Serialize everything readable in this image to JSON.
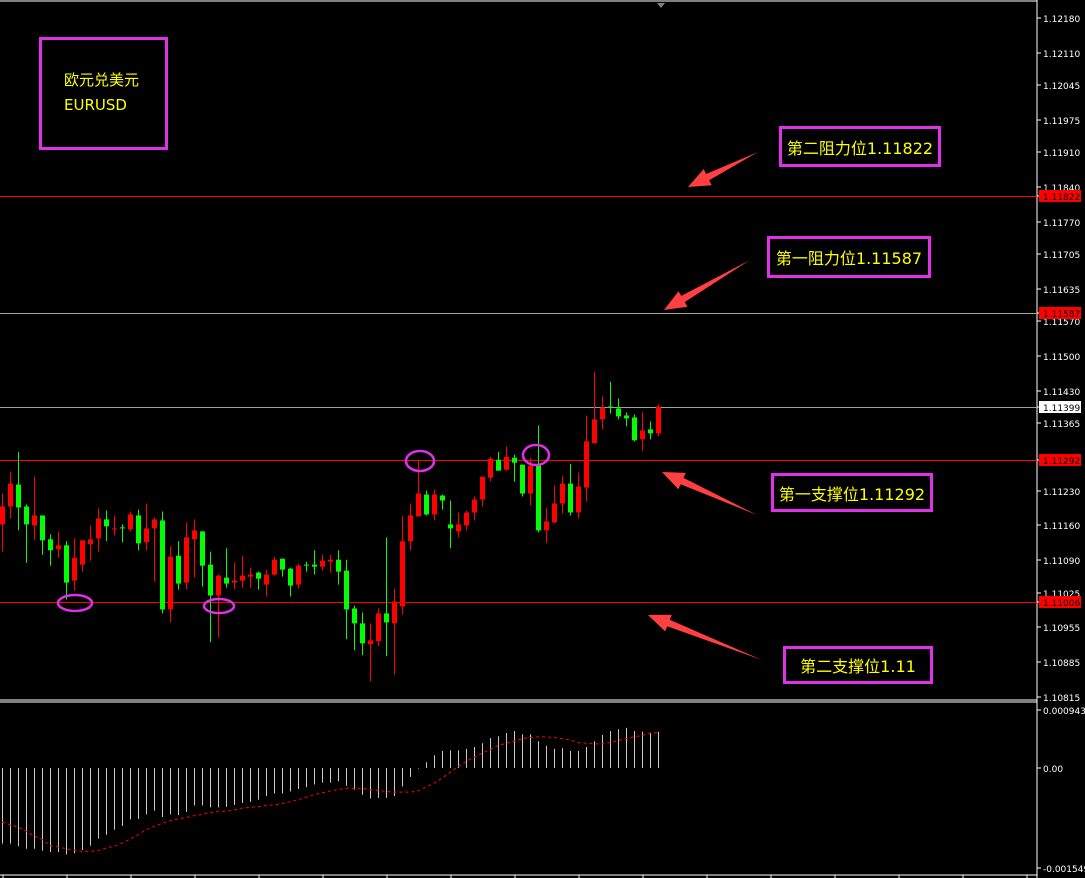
{
  "symbol_box": {
    "name_cn": "欧元兑美元",
    "name": "EURUSD"
  },
  "annotations": {
    "resistance2": "第二阻力位1.11822",
    "resistance1": "第一阻力位1.11587",
    "support1": "第一支撑位1.11292",
    "support2": "第二支撑位1.11"
  },
  "colors": {
    "background": "#000000",
    "bull_candle": "#ff0000",
    "bear_candle": "#00ff00",
    "level_line": "#ff0000",
    "price_line": "#a0a0a0",
    "histogram": "#c8c8c8",
    "signal": "#ff0000",
    "annotation_border": "#e030e8",
    "annotation_text": "#ffff00",
    "arrow": "#ff4040"
  },
  "chart_data": [
    {
      "type": "candlestick",
      "symbol": "EURUSD",
      "ylim": [
        1.1079,
        1.1221
      ],
      "grid": false,
      "y_ticks": [
        "1.12180",
        "1.12110",
        "1.12045",
        "1.11975",
        "1.11910",
        "1.11840",
        "1.11770",
        "1.11705",
        "1.11635",
        "1.11570",
        "1.11500",
        "1.11430",
        "1.11365",
        "1.11230",
        "1.11160",
        "1.11090",
        "1.11025",
        "1.10955",
        "1.10885",
        "1.10815"
      ],
      "level_labels": [
        {
          "value": "1.11822",
          "style": "level"
        },
        {
          "value": "1.11587",
          "style": "level"
        },
        {
          "value": "1.11399",
          "style": "current"
        },
        {
          "value": "1.11292",
          "style": "level"
        },
        {
          "value": "1.11006",
          "style": "level"
        }
      ],
      "horizontal_lines": [
        {
          "value": 1.11822,
          "color": "#ff0000"
        },
        {
          "value": 1.11587,
          "color": "#a0a0a0"
        },
        {
          "value": 1.11399,
          "color": "#a0a0a0"
        },
        {
          "value": 1.11292,
          "color": "#ff0000"
        },
        {
          "value": 1.11006,
          "color": "#ff0000"
        }
      ],
      "ohlc": [
        [
          1.11162,
          1.11224,
          1.11107,
          1.11198
        ],
        [
          1.11198,
          1.11268,
          1.11174,
          1.11244
        ],
        [
          1.11242,
          1.11308,
          1.1115,
          1.11196
        ],
        [
          1.11198,
          1.11202,
          1.11085,
          1.11162
        ],
        [
          1.1116,
          1.11258,
          1.1113,
          1.1118
        ],
        [
          1.1118,
          1.1118,
          1.11101,
          1.1113
        ],
        [
          1.11132,
          1.11142,
          1.11079,
          1.1111
        ],
        [
          1.11112,
          1.11148,
          1.11095,
          1.1112
        ],
        [
          1.1112,
          1.11128,
          1.11011,
          1.11045
        ],
        [
          1.11049,
          1.11134,
          1.11029,
          1.11095
        ],
        [
          1.11081,
          1.1113,
          1.11067,
          1.1113
        ],
        [
          1.11122,
          1.1116,
          1.11089,
          1.11132
        ],
        [
          1.11134,
          1.11194,
          1.11107,
          1.11174
        ],
        [
          1.11172,
          1.1119,
          1.11128,
          1.11158
        ],
        [
          1.11152,
          1.1118,
          1.1114,
          1.11154
        ],
        [
          1.11156,
          1.11162,
          1.11126,
          1.11154
        ],
        [
          1.11152,
          1.11188,
          1.11148,
          1.11182
        ],
        [
          1.1118,
          1.11192,
          1.1111,
          1.11124
        ],
        [
          1.11126,
          1.11204,
          1.1111,
          1.11154
        ],
        [
          1.11154,
          1.11176,
          1.11047,
          1.11172
        ],
        [
          1.1117,
          1.11188,
          1.10983,
          1.10991
        ],
        [
          1.10991,
          1.11118,
          1.10965,
          1.11097
        ],
        [
          1.11099,
          1.11128,
          1.11031,
          1.11043
        ],
        [
          1.11045,
          1.11166,
          1.11031,
          1.11136
        ],
        [
          1.11132,
          1.11172,
          1.11055,
          1.1115
        ],
        [
          1.11148,
          1.11148,
          1.11037,
          1.11079
        ],
        [
          1.11081,
          1.11107,
          1.10925,
          1.11019
        ],
        [
          1.11019,
          1.11061,
          1.10935,
          1.11059
        ],
        [
          1.11055,
          1.11114,
          1.11035,
          1.11043
        ],
        [
          1.11045,
          1.11085,
          1.11031,
          1.11049
        ],
        [
          1.11049,
          1.11099,
          1.11035,
          1.11059
        ],
        [
          1.11057,
          1.11075,
          1.11035,
          1.11061
        ],
        [
          1.11065,
          1.11067,
          1.11031,
          1.11053
        ],
        [
          1.11041,
          1.11071,
          1.11017,
          1.11061
        ],
        [
          1.11061,
          1.11097,
          1.11059,
          1.11091
        ],
        [
          1.11093,
          1.11093,
          1.11057,
          1.11071
        ],
        [
          1.11073,
          1.11075,
          1.11017,
          1.11039
        ],
        [
          1.11041,
          1.11083,
          1.11033,
          1.11079
        ],
        [
          1.11081,
          1.11087,
          1.11067,
          1.11079
        ],
        [
          1.11081,
          1.1111,
          1.11061,
          1.11077
        ],
        [
          1.11077,
          1.11101,
          1.11069,
          1.11089
        ],
        [
          1.11087,
          1.11101,
          1.11065,
          1.11091
        ],
        [
          1.11091,
          1.1111,
          1.11041,
          1.11067
        ],
        [
          1.11069,
          1.11091,
          1.10931,
          1.10991
        ],
        [
          1.10993,
          1.10999,
          1.10909,
          1.10963
        ],
        [
          1.10963,
          1.10985,
          1.10899,
          1.10923
        ],
        [
          1.10921,
          1.10963,
          1.10846,
          1.10929
        ],
        [
          1.10927,
          1.10993,
          1.10917,
          1.10983
        ],
        [
          1.10983,
          1.11136,
          1.10897,
          1.10965
        ],
        [
          1.10963,
          1.11033,
          1.1086,
          1.11007
        ],
        [
          1.10997,
          1.11178,
          1.10981,
          1.11128
        ],
        [
          1.11128,
          1.11204,
          1.1111,
          1.1118
        ],
        [
          1.11178,
          1.1129,
          1.11178,
          1.11224
        ],
        [
          1.11222,
          1.1123,
          1.1118,
          1.11182
        ],
        [
          1.11182,
          1.11232,
          1.1117,
          1.11222
        ],
        [
          1.1122,
          1.11222,
          1.11192,
          1.1121
        ],
        [
          1.11162,
          1.1121,
          1.11114,
          1.11154
        ],
        [
          1.11148,
          1.11186,
          1.11136,
          1.11162
        ],
        [
          1.1116,
          1.1119,
          1.1115,
          1.11186
        ],
        [
          1.11186,
          1.11218,
          1.1117,
          1.11212
        ],
        [
          1.11212,
          1.11258,
          1.11198,
          1.11258
        ],
        [
          1.11256,
          1.11298,
          1.11248,
          1.11294
        ],
        [
          1.11292,
          1.11308,
          1.1127,
          1.1127
        ],
        [
          1.11272,
          1.11319,
          1.1127,
          1.11298
        ],
        [
          1.11296,
          1.11302,
          1.11248,
          1.11286
        ],
        [
          1.11282,
          1.11282,
          1.11218,
          1.11224
        ],
        [
          1.11224,
          1.11296,
          1.112,
          1.1128
        ],
        [
          1.11282,
          1.11361,
          1.11146,
          1.1115
        ],
        [
          1.1115,
          1.11196,
          1.11124,
          1.11168
        ],
        [
          1.11166,
          1.1124,
          1.11164,
          1.11204
        ],
        [
          1.11204,
          1.1126,
          1.11184,
          1.11244
        ],
        [
          1.11244,
          1.11284,
          1.1118,
          1.11186
        ],
        [
          1.11186,
          1.11266,
          1.11174,
          1.11238
        ],
        [
          1.11236,
          1.11381,
          1.11208,
          1.11329
        ],
        [
          1.11325,
          1.11469,
          1.11325,
          1.11373
        ],
        [
          1.11373,
          1.11419,
          1.11353,
          1.11397
        ],
        [
          1.11399,
          1.11449,
          1.11385,
          1.11397
        ],
        [
          1.11395,
          1.11415,
          1.11373,
          1.11379
        ],
        [
          1.11381,
          1.11387,
          1.11359,
          1.11375
        ],
        [
          1.11377,
          1.11383,
          1.11329,
          1.11331
        ],
        [
          1.11333,
          1.11387,
          1.1131,
          1.11351
        ],
        [
          1.11353,
          1.11369,
          1.11333,
          1.11345
        ],
        [
          1.11345,
          1.11403,
          1.11339,
          1.11399
        ]
      ]
    },
    {
      "type": "bar",
      "indicator": "MACD",
      "ylim": [
        -0.001549,
        0.000943
      ],
      "y_ticks": [
        "0.000943",
        "0.00",
        "-0.001549"
      ],
      "histogram": [
        -0.00119,
        -0.00119,
        -0.00123,
        -0.00127,
        -0.00127,
        -0.0013,
        -0.00132,
        -0.00132,
        -0.00136,
        -0.00134,
        -0.00129,
        -0.00122,
        -0.00111,
        -0.00105,
        -0.00097,
        -0.00091,
        -0.00081,
        -0.0008,
        -0.00073,
        -0.00067,
        -0.00077,
        -0.00073,
        -0.00074,
        -0.00069,
        -0.00059,
        -0.00059,
        -0.00062,
        -0.00062,
        -0.00061,
        -0.00058,
        -0.00055,
        -0.00053,
        -0.0005,
        -0.00044,
        -0.0004,
        -0.0004,
        -0.00037,
        -0.00033,
        -0.0003,
        -0.00026,
        -0.00023,
        -0.00023,
        -0.00021,
        -0.00028,
        -0.00034,
        -0.00042,
        -0.00048,
        -0.00047,
        -0.00047,
        -0.00044,
        -0.00029,
        -0.00014,
        -1e-05,
        9e-05,
        0.0002,
        0.00027,
        0.00028,
        0.00028,
        0.0003,
        0.00033,
        0.00039,
        0.00047,
        0.0005,
        0.00055,
        0.00058,
        0.00053,
        0.00053,
        0.00042,
        0.00035,
        0.0003,
        0.00031,
        0.00027,
        0.00027,
        0.00033,
        0.00042,
        0.00052,
        0.00058,
        0.00061,
        0.00063,
        0.00058,
        0.00057,
        0.00055,
        0.00057
      ],
      "signal": [
        -0.00085,
        -0.00089,
        -0.00093,
        -0.00099,
        -0.00107,
        -0.00112,
        -0.00122,
        -0.00124,
        -0.00127,
        -0.00129,
        -0.00131,
        -0.00131,
        -0.0013,
        -0.00126,
        -0.00123,
        -0.00118,
        -0.00112,
        -0.00105,
        -0.00097,
        -0.00092,
        -0.00087,
        -0.00083,
        -0.0008,
        -0.00078,
        -0.00075,
        -0.00073,
        -0.0007,
        -0.00068,
        -0.00068,
        -0.00066,
        -0.00063,
        -0.00062,
        -0.00061,
        -0.00059,
        -0.00058,
        -0.00056,
        -0.00053,
        -0.0005,
        -0.00046,
        -0.00042,
        -0.00039,
        -0.00036,
        -0.00034,
        -0.00032,
        -0.00032,
        -0.00032,
        -0.00034,
        -0.00035,
        -0.00037,
        -0.00038,
        -0.00038,
        -0.00038,
        -0.00036,
        -0.0003,
        -0.00024,
        -0.00016,
        -7e-05,
        2e-05,
        0.0001,
        0.00017,
        0.00023,
        0.00029,
        0.00035,
        0.00039,
        0.00042,
        0.00046,
        0.00048,
        0.00049,
        0.00049,
        0.00048,
        0.00046,
        0.00044,
        0.0004,
        0.00039,
        0.00038,
        0.00038,
        0.0004,
        0.00043,
        0.00046,
        0.00049,
        0.00051,
        0.00055,
        0.00056
      ]
    }
  ]
}
